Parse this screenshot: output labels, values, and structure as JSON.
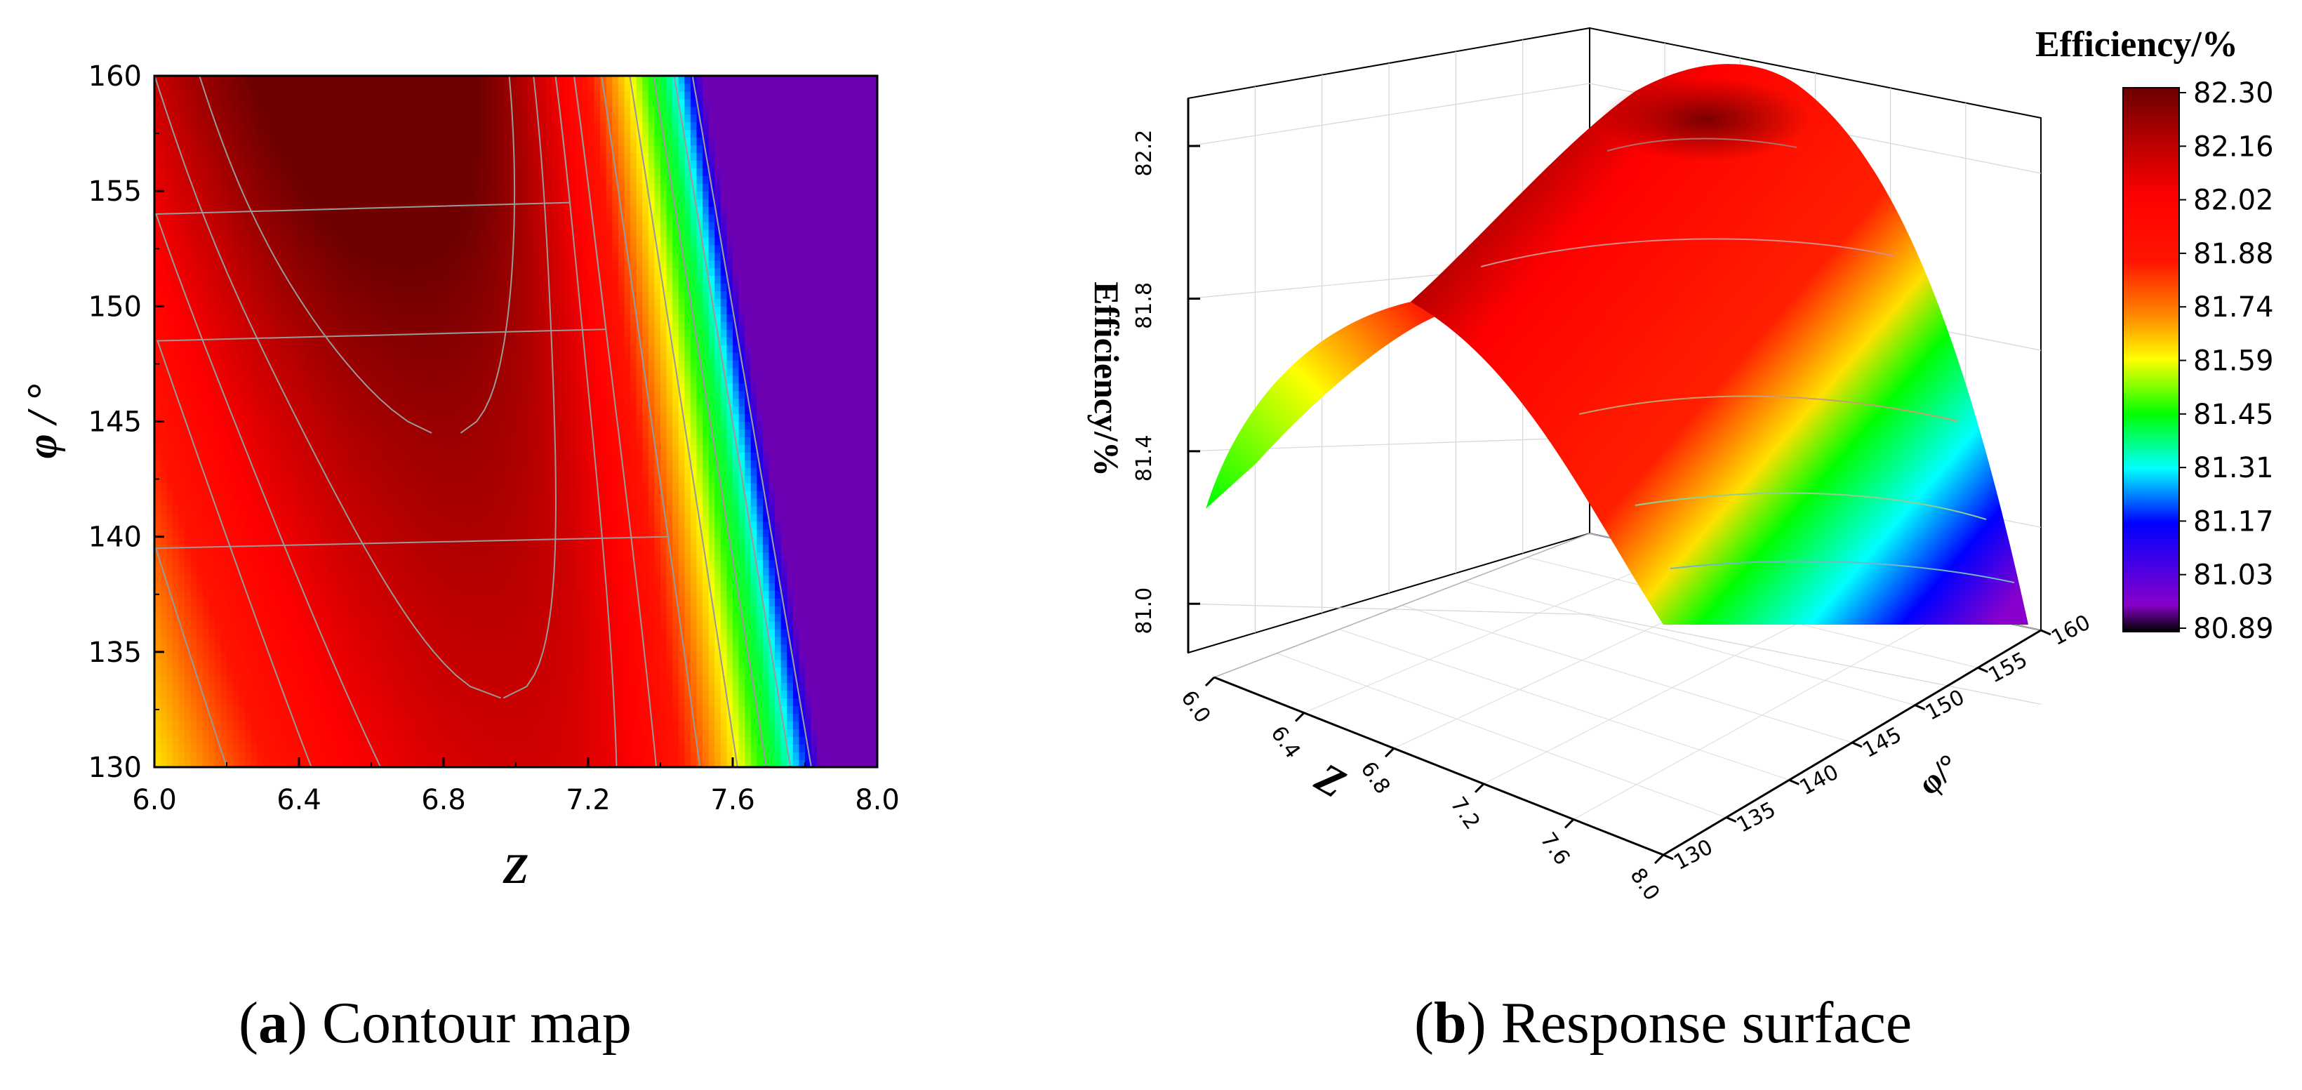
{
  "figure": {
    "caption_a_letter": "a",
    "caption_a_text": "Contour map",
    "caption_b_letter": "b",
    "caption_b_text": "Response surface"
  },
  "chart_data": [
    {
      "type": "heatmap",
      "title": "Contour map",
      "xlabel": "Z",
      "ylabel": "φ / °",
      "xlim": [
        6.0,
        8.0
      ],
      "ylim": [
        130,
        160
      ],
      "x_ticks": [
        "6.0",
        "6.4",
        "6.8",
        "7.2",
        "7.6",
        "8.0"
      ],
      "y_ticks": [
        "130",
        "135",
        "140",
        "145",
        "150",
        "155",
        "160"
      ],
      "z_range": [
        80.89,
        82.3
      ],
      "grid": false,
      "description": "Efficiency peaks (~82.3%) near Z≈6.6, φ≈160° and falls off toward Z=8.0"
    },
    {
      "type": "surface",
      "title": "Response surface",
      "xlabel": "Z",
      "ylabel": "φ/°",
      "zlabel": "Efficiency/%",
      "xlim": [
        6.0,
        8.0
      ],
      "ylim": [
        130,
        160
      ],
      "zlim": [
        80.89,
        82.3
      ],
      "x_ticks": [
        "6.0",
        "6.4",
        "6.8",
        "7.2",
        "7.6",
        "8.0"
      ],
      "y_ticks": [
        "130",
        "135",
        "140",
        "145",
        "150",
        "155",
        "160"
      ],
      "z_ticks": [
        "81.0",
        "81.4",
        "81.8",
        "82.2"
      ]
    }
  ],
  "colorbar": {
    "title": "Efficiency/%",
    "labels": [
      "82.30",
      "82.16",
      "82.02",
      "81.88",
      "81.74",
      "81.59",
      "81.45",
      "81.31",
      "81.17",
      "81.03",
      "80.89"
    ],
    "colors": [
      "#7f0000",
      "#c80000",
      "#ff0000",
      "#ff6600",
      "#ffbb00",
      "#ffff00",
      "#a6ff00",
      "#00ff00",
      "#00ffff",
      "#0000ff",
      "#8800cc"
    ]
  }
}
